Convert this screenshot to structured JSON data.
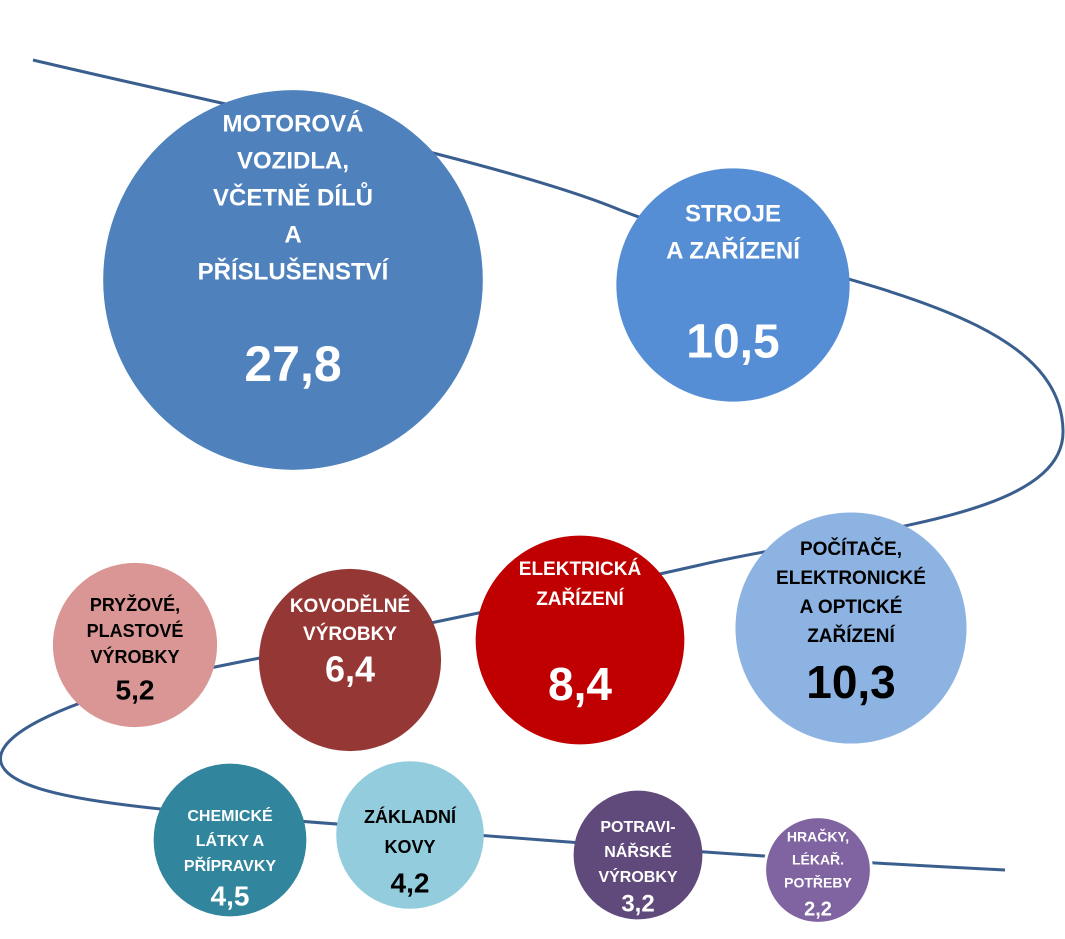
{
  "chart_data": {
    "type": "bubble",
    "categories": [
      [
        "MOTOROVÁ",
        "VOZIDLA,",
        "VČETNĚ DÍLŮ",
        "A",
        "PŘÍSLUŠENSTVÍ"
      ],
      [
        "STROJE",
        "A ZAŘÍZENÍ"
      ],
      [
        "POČÍTAČE,",
        "ELEKTRONICKÉ",
        "A OPTICKÉ",
        "ZAŘÍZENÍ"
      ],
      [
        "ELEKTRICKÁ",
        "ZAŘÍZENÍ"
      ],
      [
        "KOVODĚLNÉ",
        "VÝROBKY"
      ],
      [
        "PRYŽOVÉ,",
        "PLASTOVÉ",
        "VÝROBKY"
      ],
      [
        "CHEMICKÉ",
        "LÁTKY A",
        "PŘÍPRAVKY"
      ],
      [
        "ZÁKLADNÍ",
        "KOVY"
      ],
      [
        "POTRAVI-",
        "NÁŘSKÉ",
        "VÝROBKY"
      ],
      [
        "HRAČKY,",
        "LÉKAŘ.",
        "POTŘEBY"
      ]
    ],
    "values": [
      27.8,
      10.5,
      10.3,
      8.4,
      6.4,
      5.2,
      4.5,
      4.2,
      3.2,
      2.2
    ],
    "value_labels": [
      "27,8",
      "10,5",
      "10,3",
      "8,4",
      "6,4",
      "5,2",
      "4,5",
      "4,2",
      "3,2",
      "2,2"
    ],
    "colors": [
      "#4f81bd",
      "#558ed5",
      "#8db3e2",
      "#c00000",
      "#953735",
      "#d99694",
      "#31859c",
      "#93cddd",
      "#604a7b",
      "#8064a2"
    ],
    "text_colors": [
      "#ffffff",
      "#ffffff",
      "#000000",
      "#ffffff",
      "#ffffff",
      "#000000",
      "#ffffff",
      "#000000",
      "#ffffff",
      "#ffffff"
    ]
  }
}
